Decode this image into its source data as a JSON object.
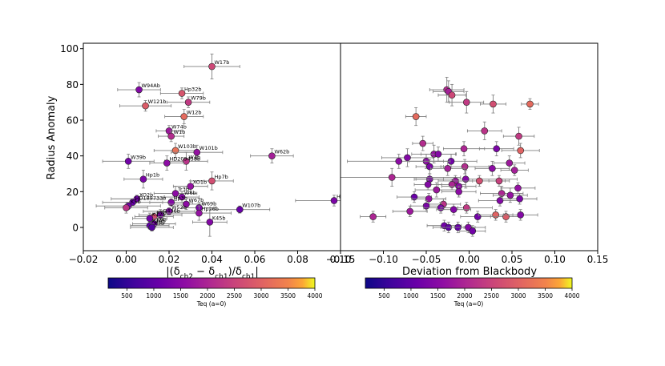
{
  "chart_data": [
    {
      "type": "scatter",
      "title": "",
      "ylabel": "Radius Anomaly",
      "xlabel": "|(δ_ch2 − δ_ch1)/δ_ch1|",
      "xlim": [
        -0.02,
        0.1
      ],
      "ylim": [
        -13,
        103
      ],
      "xticks": [
        -0.02,
        0.0,
        0.02,
        0.04,
        0.06,
        0.08,
        0.1
      ],
      "xtick_labels": [
        "−0.02",
        "0.00",
        "0.02",
        "0.04",
        "0.06",
        "0.08",
        "0.10"
      ],
      "yticks": [
        0,
        20,
        40,
        60,
        80,
        100
      ],
      "ytick_labels": [
        "0",
        "20",
        "40",
        "60",
        "80",
        "100"
      ],
      "color_by": "Teq (a=0)",
      "points": [
        {
          "x": 0.04,
          "y": 90,
          "xerr": 0.013,
          "yerr": 7,
          "teq": 2300,
          "label": "W17b"
        },
        {
          "x": 0.006,
          "y": 77,
          "xerr": 0.01,
          "yerr": 4,
          "teq": 1300,
          "label": "W94Ab"
        },
        {
          "x": 0.026,
          "y": 75,
          "xerr": 0.01,
          "yerr": 3,
          "teq": 2500,
          "label": "Hp32b"
        },
        {
          "x": 0.029,
          "y": 70,
          "xerr": 0.01,
          "yerr": 3,
          "teq": 2100,
          "label": "W79b"
        },
        {
          "x": 0.009,
          "y": 68,
          "xerr": 0.012,
          "yerr": 3,
          "teq": 2600,
          "label": "W121b"
        },
        {
          "x": 0.027,
          "y": 62,
          "xerr": 0.009,
          "yerr": 4,
          "teq": 2800,
          "label": "W12b"
        },
        {
          "x": 0.02,
          "y": 54,
          "xerr": 0.006,
          "yerr": 3,
          "teq": 1600,
          "label": "W74b"
        },
        {
          "x": 0.021,
          "y": 51,
          "xerr": 0.006,
          "yerr": 3,
          "teq": 1900,
          "label": "W1b"
        },
        {
          "x": 0.023,
          "y": 43,
          "xerr": 0.01,
          "yerr": 4,
          "teq": 2900,
          "label": "W103b"
        },
        {
          "x": 0.033,
          "y": 42,
          "xerr": 0.012,
          "yerr": 4,
          "teq": 1500,
          "label": "W101b"
        },
        {
          "x": 0.068,
          "y": 40,
          "xerr": 0.01,
          "yerr": 4,
          "teq": 1700,
          "label": "W62b"
        },
        {
          "x": 0.001,
          "y": 37,
          "xerr": 0.012,
          "yerr": 4,
          "teq": 1100,
          "label": "W39b"
        },
        {
          "x": 0.028,
          "y": 37,
          "xerr": 0.01,
          "yerr": 5,
          "teq": 2000,
          "label": "W4b"
        },
        {
          "x": 0.019,
          "y": 36,
          "xerr": 0.008,
          "yerr": 4,
          "teq": 1400,
          "label": "HD209458b"
        },
        {
          "x": 0.008,
          "y": 27,
          "xerr": 0.009,
          "yerr": 5,
          "teq": 1200,
          "label": "Hp1b"
        },
        {
          "x": 0.04,
          "y": 26,
          "xerr": 0.01,
          "yerr": 5,
          "teq": 2400,
          "label": "Hp7b"
        },
        {
          "x": 0.03,
          "y": 23,
          "xerr": 0.008,
          "yerr": 3,
          "teq": 1500,
          "label": "XO1b"
        },
        {
          "x": 0.023,
          "y": 19,
          "xerr": 0.01,
          "yerr": 4,
          "teq": 1400,
          "label": "Tr3b"
        },
        {
          "x": 0.026,
          "y": 17,
          "xerr": 0.008,
          "yerr": 3,
          "teq": 1300,
          "label": "W6b"
        },
        {
          "x": 0.005,
          "y": 16,
          "xerr": 0.012,
          "yerr": 2,
          "teq": 1100,
          "label": "XO2b"
        },
        {
          "x": 0.003,
          "y": 14,
          "xerr": 0.014,
          "yerr": 2,
          "teq": 1000,
          "label": "HD189733b"
        },
        {
          "x": 0.021,
          "y": 14,
          "xerr": 0.01,
          "yerr": 2,
          "teq": 1300,
          "label": "Hp3b"
        },
        {
          "x": 0.028,
          "y": 13,
          "xerr": 0.008,
          "yerr": 3,
          "teq": 1400,
          "label": "W67b"
        },
        {
          "x": 0.001,
          "y": 12,
          "xerr": 0.015,
          "yerr": 2,
          "teq": 1100,
          "label": "K5b"
        },
        {
          "x": 0.097,
          "y": 15,
          "xerr": 0.018,
          "yerr": 3,
          "teq": 1200,
          "label": "Hp"
        },
        {
          "x": 0.034,
          "y": 11,
          "xerr": 0.008,
          "yerr": 3,
          "teq": 1200,
          "label": "W69b"
        },
        {
          "x": 0.053,
          "y": 10,
          "xerr": 0.014,
          "yerr": 2,
          "teq": 1000,
          "label": "W107b"
        },
        {
          "x": 0.0,
          "y": 11,
          "xerr": 0.01,
          "yerr": 3,
          "teq": 2000,
          "label": ""
        },
        {
          "x": 0.02,
          "y": 9,
          "xerr": 0.012,
          "yerr": 2,
          "teq": 1300,
          "label": "W52b"
        },
        {
          "x": 0.034,
          "y": 8,
          "xerr": 0.015,
          "yerr": 4,
          "teq": 1500,
          "label": "Hp26b"
        },
        {
          "x": 0.016,
          "y": 7,
          "xerr": 0.01,
          "yerr": 3,
          "teq": 1200,
          "label": "G436b"
        },
        {
          "x": 0.013,
          "y": 6,
          "xerr": 0.009,
          "yerr": 2,
          "teq": 2400,
          "label": "K7b"
        },
        {
          "x": 0.011,
          "y": 5,
          "xerr": 0.008,
          "yerr": 3,
          "teq": 1100,
          "label": "K12b"
        },
        {
          "x": 0.039,
          "y": 3,
          "xerr": 0.008,
          "yerr": 8,
          "teq": 1300,
          "label": "K45b"
        },
        {
          "x": 0.013,
          "y": 2,
          "xerr": 0.01,
          "yerr": 2,
          "teq": 1100,
          "label": "K9b"
        },
        {
          "x": 0.011,
          "y": 1,
          "xerr": 0.009,
          "yerr": 2,
          "teq": 900,
          "label": "K48b"
        },
        {
          "x": 0.012,
          "y": 0,
          "xerr": 0.01,
          "yerr": 2,
          "teq": 800,
          "label": "K3b"
        }
      ],
      "colorbar": {
        "label": "Teq (a=0)",
        "min": 150,
        "max": 4000,
        "ticks": [
          500,
          1000,
          1500,
          2000,
          2500,
          3000,
          3500,
          4000
        ],
        "tick_labels": [
          "500",
          "1000",
          "1500",
          "2000",
          "2500",
          "3000",
          "3500",
          "4000"
        ]
      }
    },
    {
      "type": "scatter",
      "title": "",
      "ylabel": "",
      "xlabel": "Deviation from Blackbody",
      "xlim": [
        -0.15,
        0.15
      ],
      "ylim": [
        -13,
        103
      ],
      "xticks": [
        -0.15,
        -0.1,
        -0.05,
        0.0,
        0.05,
        0.1,
        0.15
      ],
      "xtick_labels": [
        "−0.15",
        "−0.10",
        "−0.05",
        "0.00",
        "0.05",
        "0.10",
        "0.15"
      ],
      "color_by": "Teq (a=0)",
      "points": [
        {
          "x": -0.026,
          "y": 77,
          "xerr": 0.02,
          "yerr": 7,
          "teq": 1900
        },
        {
          "x": -0.024,
          "y": 76,
          "xerr": 0.018,
          "yerr": 6,
          "teq": 1700
        },
        {
          "x": -0.02,
          "y": 74,
          "xerr": 0.016,
          "yerr": 6,
          "teq": 2300
        },
        {
          "x": -0.003,
          "y": 70,
          "xerr": 0.02,
          "yerr": 6,
          "teq": 2100
        },
        {
          "x": 0.028,
          "y": 69,
          "xerr": 0.015,
          "yerr": 5,
          "teq": 2400
        },
        {
          "x": 0.071,
          "y": 69,
          "xerr": 0.01,
          "yerr": 3,
          "teq": 2800
        },
        {
          "x": -0.062,
          "y": 62,
          "xerr": 0.012,
          "yerr": 5,
          "teq": 2800
        },
        {
          "x": 0.018,
          "y": 54,
          "xerr": 0.02,
          "yerr": 5,
          "teq": 2000
        },
        {
          "x": 0.058,
          "y": 51,
          "xerr": 0.018,
          "yerr": 5,
          "teq": 2100
        },
        {
          "x": -0.054,
          "y": 47,
          "xerr": 0.012,
          "yerr": 4,
          "teq": 1900
        },
        {
          "x": 0.06,
          "y": 43,
          "xerr": 0.022,
          "yerr": 4,
          "teq": 2700
        },
        {
          "x": 0.032,
          "y": 44,
          "xerr": 0.02,
          "yerr": 4,
          "teq": 1200
        },
        {
          "x": -0.006,
          "y": 44,
          "xerr": 0.024,
          "yerr": 4,
          "teq": 1800
        },
        {
          "x": -0.041,
          "y": 41,
          "xerr": 0.026,
          "yerr": 5,
          "teq": 1500
        },
        {
          "x": -0.036,
          "y": 41,
          "xerr": 0.02,
          "yerr": 4,
          "teq": 1300
        },
        {
          "x": -0.072,
          "y": 39,
          "xerr": 0.03,
          "yerr": 5,
          "teq": 1300
        },
        {
          "x": -0.05,
          "y": 37,
          "xerr": 0.02,
          "yerr": 4,
          "teq": 1400
        },
        {
          "x": -0.021,
          "y": 37,
          "xerr": 0.03,
          "yerr": 4,
          "teq": 1100
        },
        {
          "x": -0.082,
          "y": 37,
          "xerr": 0.06,
          "yerr": 4,
          "teq": 1400
        },
        {
          "x": 0.047,
          "y": 36,
          "xerr": 0.018,
          "yerr": 4,
          "teq": 1600
        },
        {
          "x": -0.046,
          "y": 34,
          "xerr": 0.016,
          "yerr": 4,
          "teq": 1200
        },
        {
          "x": -0.005,
          "y": 34,
          "xerr": 0.028,
          "yerr": 4,
          "teq": 1900
        },
        {
          "x": -0.025,
          "y": 33,
          "xerr": 0.02,
          "yerr": 4,
          "teq": 1700
        },
        {
          "x": 0.027,
          "y": 33,
          "xerr": 0.02,
          "yerr": 4,
          "teq": 1400
        },
        {
          "x": 0.053,
          "y": 32,
          "xerr": 0.016,
          "yerr": 3,
          "teq": 1700
        },
        {
          "x": -0.046,
          "y": 27,
          "xerr": 0.016,
          "yerr": 3,
          "teq": 1200
        },
        {
          "x": -0.09,
          "y": 28,
          "xerr": 0.08,
          "yerr": 5,
          "teq": 1800
        },
        {
          "x": -0.004,
          "y": 27,
          "xerr": 0.06,
          "yerr": 5,
          "teq": 1300
        },
        {
          "x": -0.016,
          "y": 26,
          "xerr": 0.02,
          "yerr": 3,
          "teq": 1600
        },
        {
          "x": 0.012,
          "y": 26,
          "xerr": 0.03,
          "yerr": 3,
          "teq": 2400
        },
        {
          "x": 0.035,
          "y": 26,
          "xerr": 0.012,
          "yerr": 3,
          "teq": 2200
        },
        {
          "x": -0.048,
          "y": 24,
          "xerr": 0.016,
          "yerr": 3,
          "teq": 1300
        },
        {
          "x": -0.02,
          "y": 24,
          "xerr": 0.016,
          "yerr": 3,
          "teq": 1800
        },
        {
          "x": -0.012,
          "y": 23,
          "xerr": 0.02,
          "yerr": 3,
          "teq": 1400
        },
        {
          "x": 0.057,
          "y": 22,
          "xerr": 0.02,
          "yerr": 3,
          "teq": 1500
        },
        {
          "x": -0.038,
          "y": 21,
          "xerr": 0.025,
          "yerr": 4,
          "teq": 1600
        },
        {
          "x": -0.012,
          "y": 20,
          "xerr": 0.02,
          "yerr": 3,
          "teq": 1400
        },
        {
          "x": 0.038,
          "y": 19,
          "xerr": 0.025,
          "yerr": 4,
          "teq": 1800
        },
        {
          "x": 0.048,
          "y": 18,
          "xerr": 0.02,
          "yerr": 4,
          "teq": 1500
        },
        {
          "x": -0.064,
          "y": 17,
          "xerr": 0.02,
          "yerr": 3,
          "teq": 1000
        },
        {
          "x": -0.047,
          "y": 16,
          "xerr": 0.02,
          "yerr": 3,
          "teq": 1500
        },
        {
          "x": 0.036,
          "y": 15,
          "xerr": 0.025,
          "yerr": 3,
          "teq": 1300
        },
        {
          "x": 0.059,
          "y": 16,
          "xerr": 0.02,
          "yerr": 3,
          "teq": 1200
        },
        {
          "x": -0.03,
          "y": 13,
          "xerr": 0.02,
          "yerr": 3,
          "teq": 2000
        },
        {
          "x": -0.05,
          "y": 12,
          "xerr": 0.018,
          "yerr": 3,
          "teq": 1200
        },
        {
          "x": -0.033,
          "y": 11,
          "xerr": 0.02,
          "yerr": 3,
          "teq": 1200
        },
        {
          "x": -0.003,
          "y": 11,
          "xerr": 0.03,
          "yerr": 3,
          "teq": 2100
        },
        {
          "x": -0.018,
          "y": 10,
          "xerr": 0.02,
          "yerr": 3,
          "teq": 1300
        },
        {
          "x": -0.069,
          "y": 9,
          "xerr": 0.02,
          "yerr": 3,
          "teq": 1600
        },
        {
          "x": 0.01,
          "y": 6,
          "xerr": 0.02,
          "yerr": 3,
          "teq": 1100
        },
        {
          "x": -0.112,
          "y": 6,
          "xerr": 0.015,
          "yerr": 3,
          "teq": 1800
        },
        {
          "x": 0.031,
          "y": 7,
          "xerr": 0.02,
          "yerr": 3,
          "teq": 2700
        },
        {
          "x": 0.043,
          "y": 6,
          "xerr": 0.018,
          "yerr": 3,
          "teq": 2600
        },
        {
          "x": 0.06,
          "y": 7,
          "xerr": 0.02,
          "yerr": 3,
          "teq": 1300
        },
        {
          "x": -0.029,
          "y": 1,
          "xerr": 0.02,
          "yerr": 3,
          "teq": 1100
        },
        {
          "x": -0.024,
          "y": 0,
          "xerr": 0.018,
          "yerr": 3,
          "teq": 900
        },
        {
          "x": -0.013,
          "y": 0,
          "xerr": 0.02,
          "yerr": 3,
          "teq": 1000
        },
        {
          "x": -0.001,
          "y": 0,
          "xerr": 0.02,
          "yerr": 3,
          "teq": 1300
        },
        {
          "x": 0.004,
          "y": -2,
          "xerr": 0.015,
          "yerr": 3,
          "teq": 1100
        }
      ],
      "colorbar": {
        "label": "Teq (a=0)",
        "min": 150,
        "max": 4000,
        "ticks": [
          500,
          1000,
          1500,
          2000,
          2500,
          3000,
          3500,
          4000
        ],
        "tick_labels": [
          "500",
          "1000",
          "1500",
          "2000",
          "2500",
          "3000",
          "3500",
          "4000"
        ]
      }
    }
  ]
}
